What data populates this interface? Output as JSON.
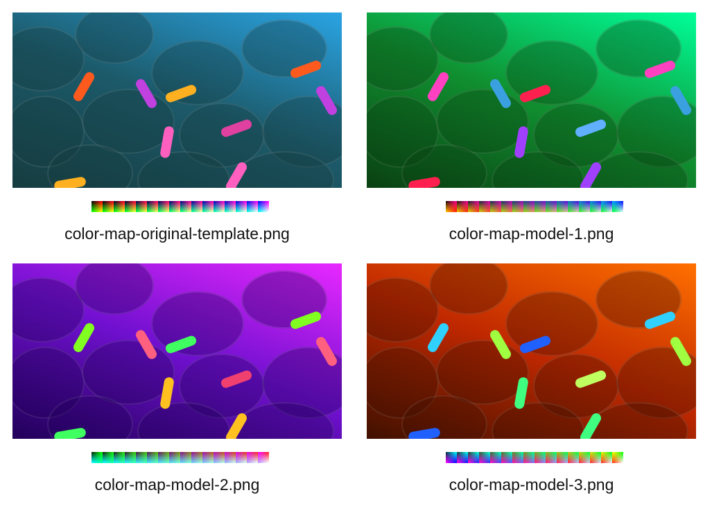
{
  "panels": [
    {
      "filename": "color-map-original-template.png",
      "water_colors": [
        "#2aa4e4",
        "#1c5a6a",
        "#163c40"
      ],
      "fish_colors": [
        "#ff5a1e",
        "#c040e0",
        "#ffb020",
        "#ff60c0",
        "#e040a0"
      ],
      "color_map": {
        "tile_count": 16,
        "first": [
          "#000000",
          "#ff0000",
          "#00ff00",
          "#ffff00"
        ],
        "last": [
          "#0000ff",
          "#ff00ff",
          "#00ffff",
          "#ffffff"
        ]
      }
    },
    {
      "filename": "color-map-model-1.png",
      "water_colors": [
        "#00ff9a",
        "#109030",
        "#0a4012"
      ],
      "fish_colors": [
        "#ff40c0",
        "#3aa0e0",
        "#ff2050",
        "#a040ff",
        "#60b0ff"
      ],
      "color_map": {
        "tile_count": 16,
        "first": [
          "#200800",
          "#ff0090",
          "#ffc000",
          "#ff2000"
        ],
        "last": [
          "#00a0ff",
          "#0010ff",
          "#00ff40",
          "#e0ffff"
        ]
      }
    },
    {
      "filename": "color-map-model-2.png",
      "water_colors": [
        "#e828ff",
        "#7010d0",
        "#200058"
      ],
      "fish_colors": [
        "#80ff20",
        "#ff6080",
        "#40ff60",
        "#ffc020",
        "#f04070"
      ],
      "color_map": {
        "tile_count": 16,
        "first": [
          "#002000",
          "#00ff00",
          "#00ffff",
          "#00ffa0"
        ],
        "last": [
          "#ff00ff",
          "#ff2020",
          "#c0a0ff",
          "#ffffff"
        ]
      }
    },
    {
      "filename": "color-map-model-3.png",
      "water_colors": [
        "#ff7000",
        "#c02800",
        "#401000"
      ],
      "fish_colors": [
        "#30d0ff",
        "#a0ff40",
        "#2060ff",
        "#40ff80",
        "#c0ff60"
      ],
      "color_map": {
        "tile_count": 16,
        "first": [
          "#003040",
          "#00ffff",
          "#ff00ff",
          "#0000ff"
        ],
        "last": [
          "#ffff00",
          "#00ff00",
          "#ff3000",
          "#ffffff"
        ]
      }
    }
  ]
}
